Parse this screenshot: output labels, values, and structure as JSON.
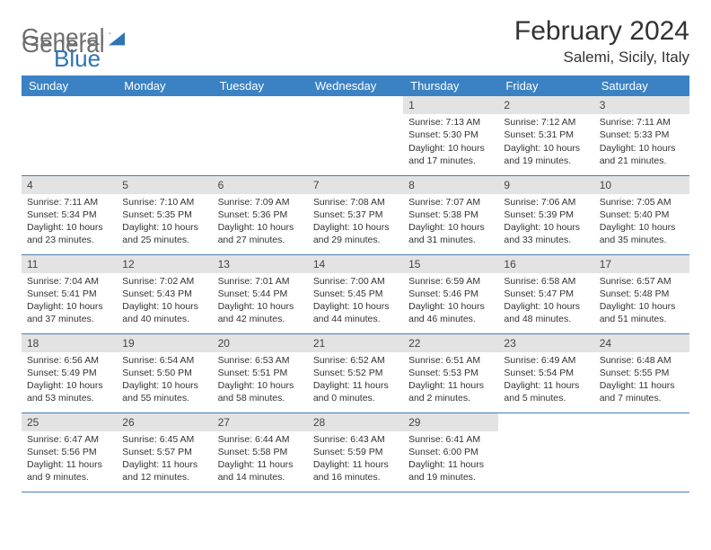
{
  "logo": {
    "general": "General",
    "blue": "Blue"
  },
  "header": {
    "title": "February 2024",
    "location": "Salemi, Sicily, Italy"
  },
  "colors": {
    "header_bg": "#3b82c4",
    "header_text": "#ffffff",
    "daynum_bg": "#e3e3e3",
    "row_border": "#4a7db0",
    "logo_gray": "#6d6d6d",
    "logo_blue": "#2f74b5"
  },
  "weekdays": [
    "Sunday",
    "Monday",
    "Tuesday",
    "Wednesday",
    "Thursday",
    "Friday",
    "Saturday"
  ],
  "weeks": [
    [
      null,
      null,
      null,
      null,
      {
        "n": "1",
        "sr": "7:13 AM",
        "ss": "5:30 PM",
        "dl": "10 hours and 17 minutes."
      },
      {
        "n": "2",
        "sr": "7:12 AM",
        "ss": "5:31 PM",
        "dl": "10 hours and 19 minutes."
      },
      {
        "n": "3",
        "sr": "7:11 AM",
        "ss": "5:33 PM",
        "dl": "10 hours and 21 minutes."
      }
    ],
    [
      {
        "n": "4",
        "sr": "7:11 AM",
        "ss": "5:34 PM",
        "dl": "10 hours and 23 minutes."
      },
      {
        "n": "5",
        "sr": "7:10 AM",
        "ss": "5:35 PM",
        "dl": "10 hours and 25 minutes."
      },
      {
        "n": "6",
        "sr": "7:09 AM",
        "ss": "5:36 PM",
        "dl": "10 hours and 27 minutes."
      },
      {
        "n": "7",
        "sr": "7:08 AM",
        "ss": "5:37 PM",
        "dl": "10 hours and 29 minutes."
      },
      {
        "n": "8",
        "sr": "7:07 AM",
        "ss": "5:38 PM",
        "dl": "10 hours and 31 minutes."
      },
      {
        "n": "9",
        "sr": "7:06 AM",
        "ss": "5:39 PM",
        "dl": "10 hours and 33 minutes."
      },
      {
        "n": "10",
        "sr": "7:05 AM",
        "ss": "5:40 PM",
        "dl": "10 hours and 35 minutes."
      }
    ],
    [
      {
        "n": "11",
        "sr": "7:04 AM",
        "ss": "5:41 PM",
        "dl": "10 hours and 37 minutes."
      },
      {
        "n": "12",
        "sr": "7:02 AM",
        "ss": "5:43 PM",
        "dl": "10 hours and 40 minutes."
      },
      {
        "n": "13",
        "sr": "7:01 AM",
        "ss": "5:44 PM",
        "dl": "10 hours and 42 minutes."
      },
      {
        "n": "14",
        "sr": "7:00 AM",
        "ss": "5:45 PM",
        "dl": "10 hours and 44 minutes."
      },
      {
        "n": "15",
        "sr": "6:59 AM",
        "ss": "5:46 PM",
        "dl": "10 hours and 46 minutes."
      },
      {
        "n": "16",
        "sr": "6:58 AM",
        "ss": "5:47 PM",
        "dl": "10 hours and 48 minutes."
      },
      {
        "n": "17",
        "sr": "6:57 AM",
        "ss": "5:48 PM",
        "dl": "10 hours and 51 minutes."
      }
    ],
    [
      {
        "n": "18",
        "sr": "6:56 AM",
        "ss": "5:49 PM",
        "dl": "10 hours and 53 minutes."
      },
      {
        "n": "19",
        "sr": "6:54 AM",
        "ss": "5:50 PM",
        "dl": "10 hours and 55 minutes."
      },
      {
        "n": "20",
        "sr": "6:53 AM",
        "ss": "5:51 PM",
        "dl": "10 hours and 58 minutes."
      },
      {
        "n": "21",
        "sr": "6:52 AM",
        "ss": "5:52 PM",
        "dl": "11 hours and 0 minutes."
      },
      {
        "n": "22",
        "sr": "6:51 AM",
        "ss": "5:53 PM",
        "dl": "11 hours and 2 minutes."
      },
      {
        "n": "23",
        "sr": "6:49 AM",
        "ss": "5:54 PM",
        "dl": "11 hours and 5 minutes."
      },
      {
        "n": "24",
        "sr": "6:48 AM",
        "ss": "5:55 PM",
        "dl": "11 hours and 7 minutes."
      }
    ],
    [
      {
        "n": "25",
        "sr": "6:47 AM",
        "ss": "5:56 PM",
        "dl": "11 hours and 9 minutes."
      },
      {
        "n": "26",
        "sr": "6:45 AM",
        "ss": "5:57 PM",
        "dl": "11 hours and 12 minutes."
      },
      {
        "n": "27",
        "sr": "6:44 AM",
        "ss": "5:58 PM",
        "dl": "11 hours and 14 minutes."
      },
      {
        "n": "28",
        "sr": "6:43 AM",
        "ss": "5:59 PM",
        "dl": "11 hours and 16 minutes."
      },
      {
        "n": "29",
        "sr": "6:41 AM",
        "ss": "6:00 PM",
        "dl": "11 hours and 19 minutes."
      },
      null,
      null
    ]
  ],
  "labels": {
    "sunrise": "Sunrise: ",
    "sunset": "Sunset: ",
    "daylight": "Daylight: "
  }
}
